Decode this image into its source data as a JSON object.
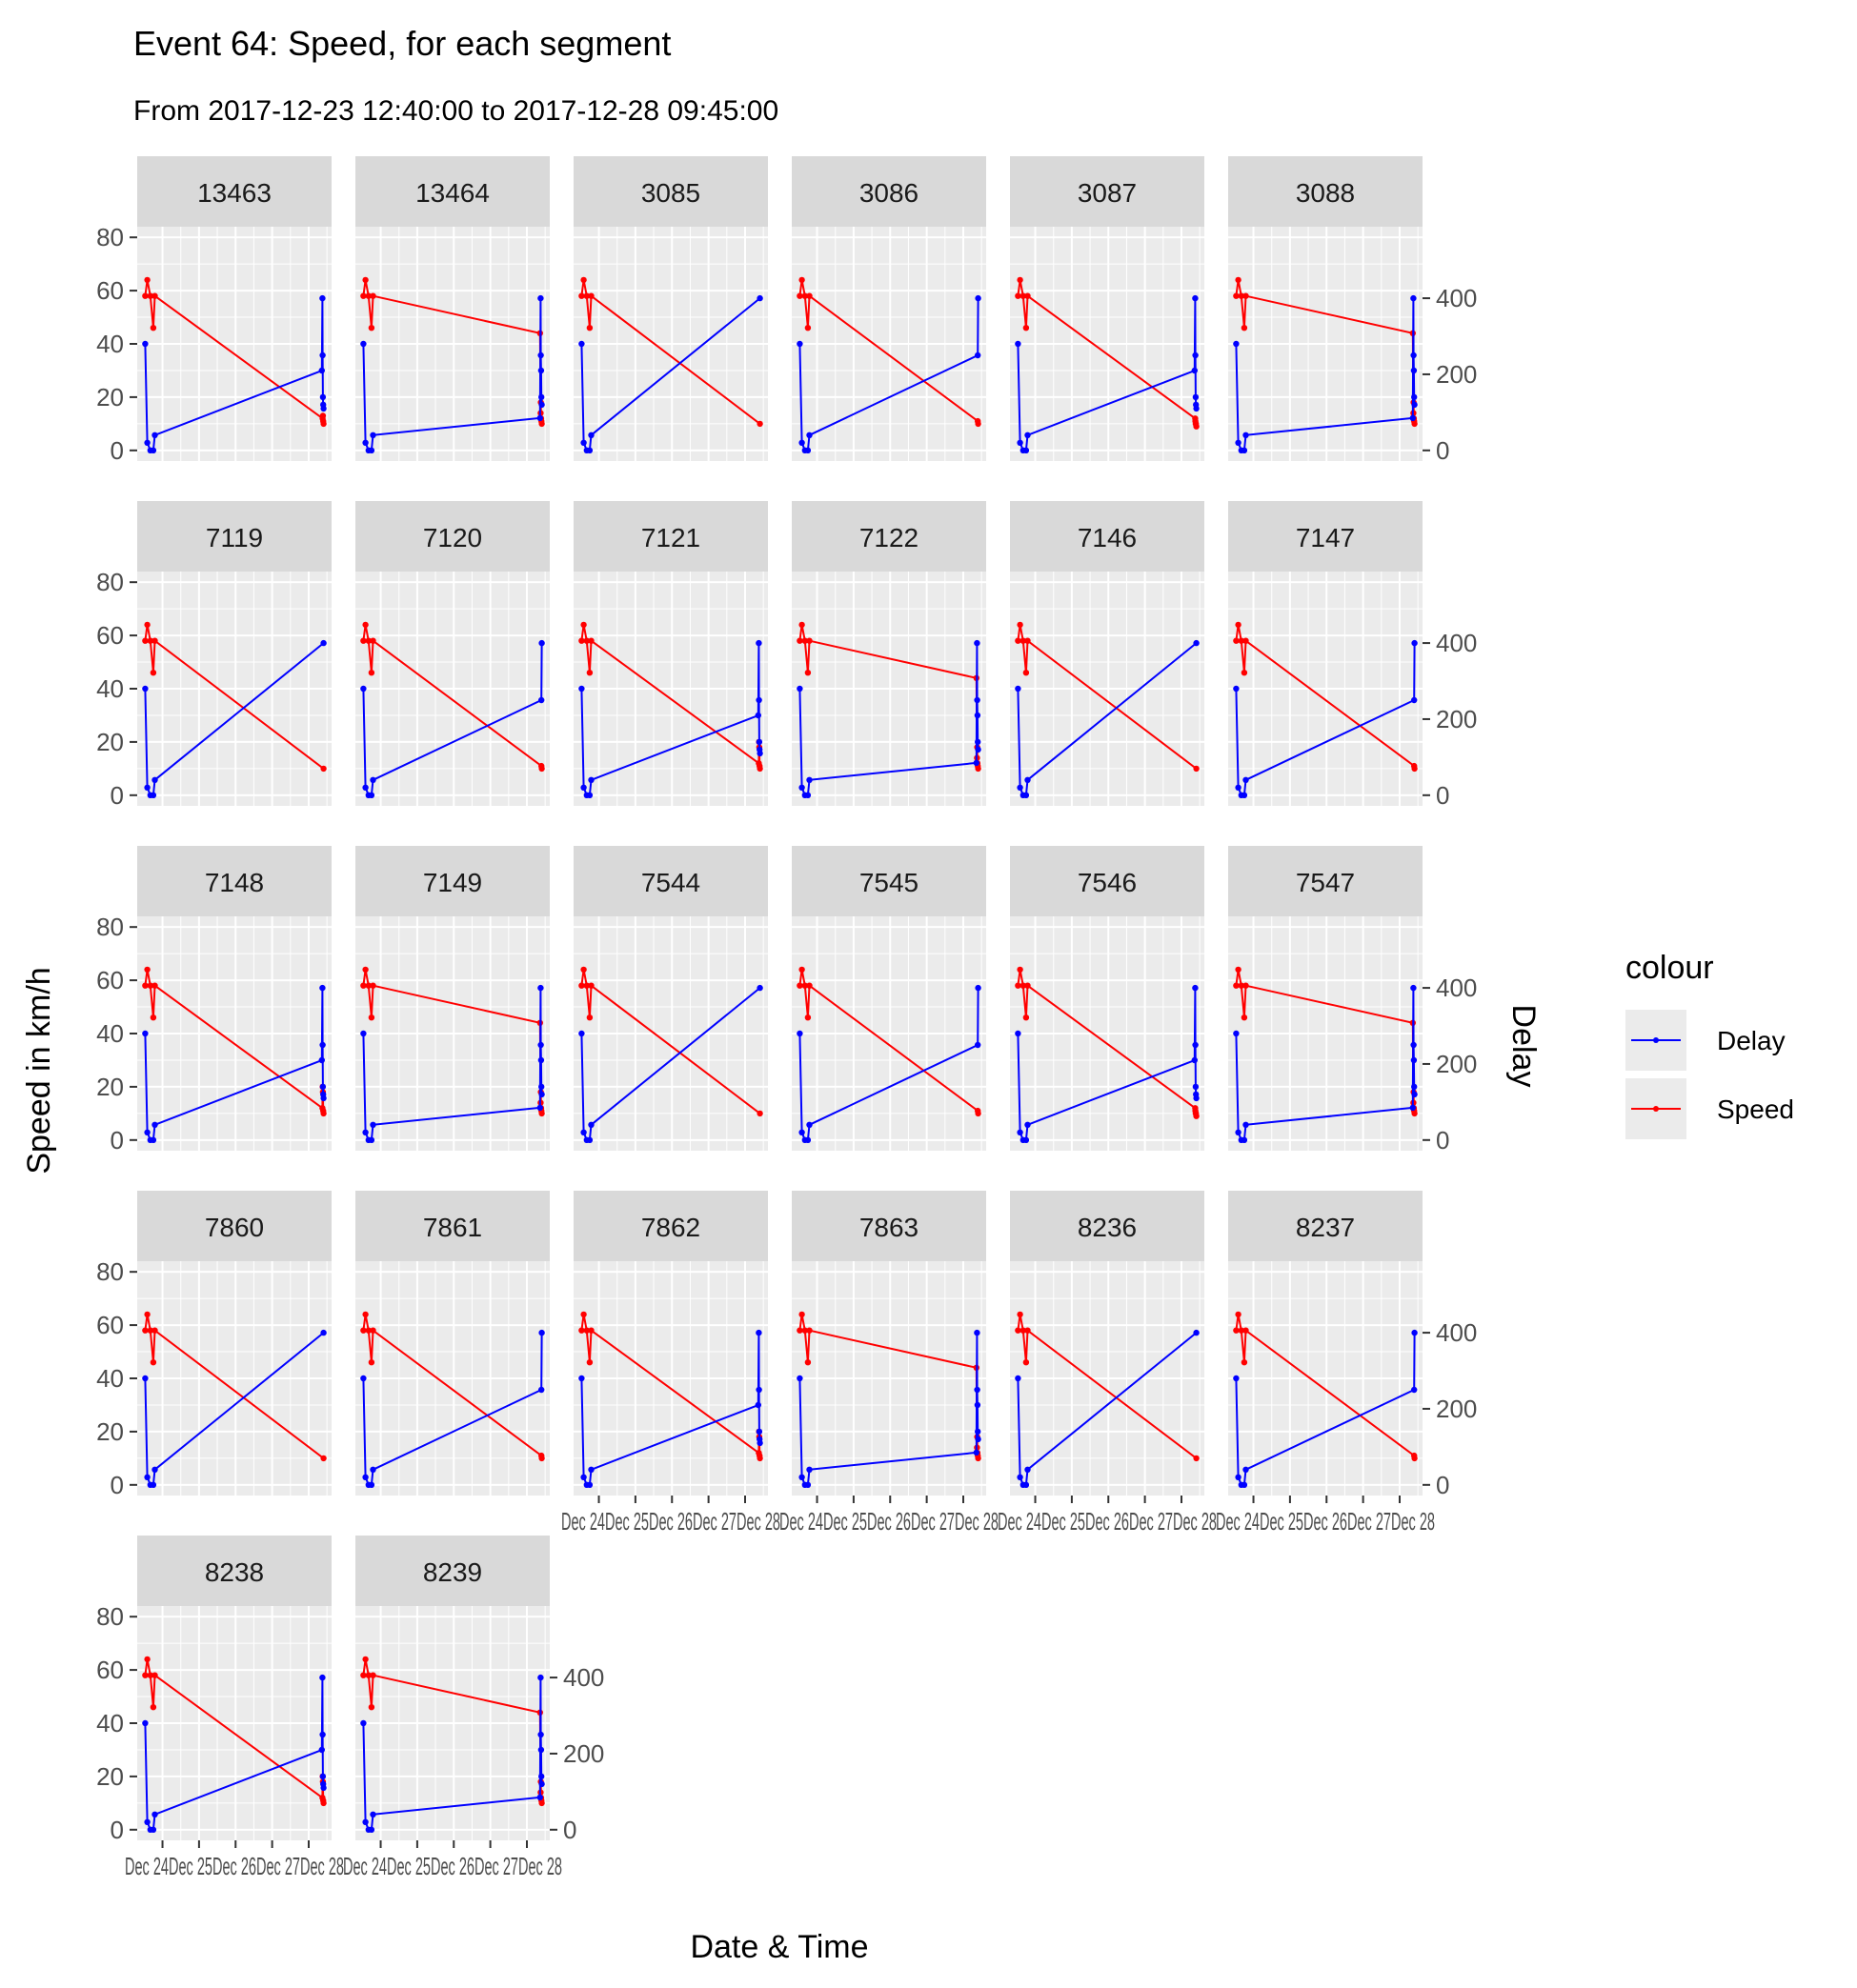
{
  "title": "Event 64: Speed, for each segment",
  "subtitle": "From 2017-12-23 12:40:00 to 2017-12-28 09:45:00",
  "colors": {
    "delay": "#0000ff",
    "speed": "#ff0000",
    "panel_bg": "#ebebeb",
    "strip_bg": "#d9d9d9",
    "grid": "#ffffff"
  },
  "legend": {
    "title": "colour",
    "items": [
      {
        "label": "Delay",
        "color": "#0000ff"
      },
      {
        "label": "Speed",
        "color": "#ff0000"
      }
    ]
  },
  "chart_data": {
    "type": "line",
    "xlabel": "Date & Time",
    "ylabel": "Speed in km/h",
    "y2label": "Delay",
    "ylim": [
      0,
      80
    ],
    "y2lim": [
      0,
      560
    ],
    "yticks": [
      "0",
      "20",
      "40",
      "60",
      "80"
    ],
    "y2ticks": [
      "0",
      "200",
      "400"
    ],
    "xlim": [
      "2017-12-23 12:40",
      "2017-12-28 09:45"
    ],
    "x_tick_labels_overlapping": "Dec 24Dec 25Dec 26Dec 27Dec 28",
    "legend_position": "right",
    "grid": true,
    "x_times": [
      "12-23 12:40",
      "12-23 14:00",
      "12-23 16:00",
      "12-23 18:00",
      "12-23 19:00",
      "12-28 08:40",
      "12-28 09:00",
      "12-28 09:10",
      "12-28 09:20",
      "12-28 09:30",
      "12-28 09:45"
    ],
    "panels": [
      {
        "segment": "13463",
        "speed": [
          58,
          64,
          58,
          46,
          58,
          null,
          null,
          12,
          13,
          11,
          10
        ],
        "delay": [
          280,
          20,
          0,
          0,
          40,
          210,
          400,
          250,
          140,
          120,
          110
        ]
      },
      {
        "segment": "13464",
        "speed": [
          58,
          64,
          58,
          46,
          58,
          44,
          14,
          18,
          12,
          11,
          10
        ],
        "delay": [
          280,
          20,
          0,
          0,
          40,
          85,
          400,
          250,
          210,
          140,
          120
        ]
      },
      {
        "segment": "3085",
        "speed": [
          58,
          64,
          58,
          46,
          58,
          null,
          null,
          null,
          null,
          null,
          10
        ],
        "delay": [
          280,
          20,
          0,
          0,
          40,
          null,
          null,
          null,
          null,
          null,
          400
        ]
      },
      {
        "segment": "3086",
        "speed": [
          58,
          64,
          58,
          46,
          58,
          null,
          null,
          null,
          null,
          11,
          10
        ],
        "delay": [
          280,
          20,
          0,
          0,
          40,
          null,
          null,
          null,
          null,
          250,
          400
        ]
      },
      {
        "segment": "3087",
        "speed": [
          58,
          64,
          58,
          46,
          58,
          null,
          12,
          11,
          10,
          10,
          9
        ],
        "delay": [
          280,
          20,
          0,
          0,
          40,
          210,
          400,
          250,
          140,
          120,
          110
        ]
      },
      {
        "segment": "3088",
        "speed": [
          58,
          64,
          58,
          46,
          58,
          44,
          14,
          18,
          12,
          11,
          10
        ],
        "delay": [
          280,
          20,
          0,
          0,
          40,
          85,
          400,
          250,
          210,
          140,
          120
        ]
      },
      {
        "segment": "7119",
        "speed": [
          58,
          64,
          58,
          46,
          58,
          null,
          null,
          null,
          null,
          null,
          10
        ],
        "delay": [
          280,
          20,
          0,
          0,
          40,
          null,
          null,
          null,
          null,
          null,
          400
        ]
      },
      {
        "segment": "7120",
        "speed": [
          58,
          64,
          58,
          46,
          58,
          null,
          null,
          null,
          null,
          11,
          10
        ],
        "delay": [
          280,
          20,
          0,
          0,
          40,
          null,
          null,
          null,
          null,
          250,
          400
        ]
      },
      {
        "segment": "7121",
        "speed": [
          58,
          64,
          58,
          46,
          58,
          null,
          12,
          20,
          18,
          11,
          10
        ],
        "delay": [
          280,
          20,
          0,
          0,
          40,
          210,
          400,
          250,
          140,
          120,
          110
        ]
      },
      {
        "segment": "7122",
        "speed": [
          58,
          64,
          58,
          46,
          58,
          44,
          14,
          18,
          12,
          11,
          10
        ],
        "delay": [
          280,
          20,
          0,
          0,
          40,
          85,
          400,
          250,
          210,
          140,
          120
        ]
      },
      {
        "segment": "7146",
        "speed": [
          58,
          64,
          58,
          46,
          58,
          null,
          null,
          null,
          null,
          null,
          10
        ],
        "delay": [
          280,
          20,
          0,
          0,
          40,
          null,
          null,
          null,
          null,
          null,
          400
        ]
      },
      {
        "segment": "7147",
        "speed": [
          58,
          64,
          58,
          46,
          58,
          null,
          null,
          null,
          null,
          11,
          10
        ],
        "delay": [
          280,
          20,
          0,
          0,
          40,
          null,
          null,
          null,
          null,
          250,
          400
        ]
      },
      {
        "segment": "7148",
        "speed": [
          58,
          64,
          58,
          46,
          58,
          null,
          12,
          20,
          18,
          11,
          10
        ],
        "delay": [
          280,
          20,
          0,
          0,
          40,
          210,
          400,
          250,
          140,
          120,
          110
        ]
      },
      {
        "segment": "7149",
        "speed": [
          58,
          64,
          58,
          46,
          58,
          44,
          14,
          18,
          12,
          11,
          10
        ],
        "delay": [
          280,
          20,
          0,
          0,
          40,
          85,
          400,
          250,
          210,
          140,
          120
        ]
      },
      {
        "segment": "7544",
        "speed": [
          58,
          64,
          58,
          46,
          58,
          null,
          null,
          null,
          null,
          null,
          10
        ],
        "delay": [
          280,
          20,
          0,
          0,
          40,
          null,
          null,
          null,
          null,
          null,
          400
        ]
      },
      {
        "segment": "7545",
        "speed": [
          58,
          64,
          58,
          46,
          58,
          null,
          null,
          null,
          null,
          11,
          10
        ],
        "delay": [
          280,
          20,
          0,
          0,
          40,
          null,
          null,
          null,
          null,
          250,
          400
        ]
      },
      {
        "segment": "7546",
        "speed": [
          58,
          64,
          58,
          46,
          58,
          null,
          12,
          11,
          10,
          10,
          9
        ],
        "delay": [
          280,
          20,
          0,
          0,
          40,
          210,
          400,
          250,
          140,
          120,
          110
        ]
      },
      {
        "segment": "7547",
        "speed": [
          58,
          64,
          58,
          46,
          58,
          44,
          14,
          18,
          12,
          11,
          10
        ],
        "delay": [
          280,
          20,
          0,
          0,
          40,
          85,
          400,
          250,
          210,
          140,
          120
        ]
      },
      {
        "segment": "7860",
        "speed": [
          58,
          64,
          58,
          46,
          58,
          null,
          null,
          null,
          null,
          null,
          10
        ],
        "delay": [
          280,
          20,
          0,
          0,
          40,
          null,
          null,
          null,
          null,
          null,
          400
        ]
      },
      {
        "segment": "7861",
        "speed": [
          58,
          64,
          58,
          46,
          58,
          null,
          null,
          null,
          null,
          11,
          10
        ],
        "delay": [
          280,
          20,
          0,
          0,
          40,
          null,
          null,
          null,
          null,
          250,
          400
        ]
      },
      {
        "segment": "7862",
        "speed": [
          58,
          64,
          58,
          46,
          58,
          null,
          12,
          20,
          18,
          11,
          10
        ],
        "delay": [
          280,
          20,
          0,
          0,
          40,
          210,
          400,
          250,
          140,
          120,
          110
        ]
      },
      {
        "segment": "7863",
        "speed": [
          58,
          64,
          58,
          46,
          58,
          44,
          14,
          18,
          12,
          11,
          10
        ],
        "delay": [
          280,
          20,
          0,
          0,
          40,
          85,
          400,
          250,
          210,
          140,
          120
        ]
      },
      {
        "segment": "8236",
        "speed": [
          58,
          64,
          58,
          46,
          58,
          null,
          null,
          null,
          null,
          null,
          10
        ],
        "delay": [
          280,
          20,
          0,
          0,
          40,
          null,
          null,
          null,
          null,
          null,
          400
        ]
      },
      {
        "segment": "8237",
        "speed": [
          58,
          64,
          58,
          46,
          58,
          null,
          null,
          null,
          null,
          11,
          10
        ],
        "delay": [
          280,
          20,
          0,
          0,
          40,
          null,
          null,
          null,
          null,
          250,
          400
        ]
      },
      {
        "segment": "8238",
        "speed": [
          58,
          64,
          58,
          46,
          58,
          null,
          12,
          20,
          18,
          11,
          10
        ],
        "delay": [
          280,
          20,
          0,
          0,
          40,
          210,
          400,
          250,
          140,
          120,
          110
        ]
      },
      {
        "segment": "8239",
        "speed": [
          58,
          64,
          58,
          46,
          58,
          44,
          14,
          18,
          12,
          11,
          10
        ],
        "delay": [
          280,
          20,
          0,
          0,
          40,
          85,
          400,
          250,
          210,
          140,
          120
        ]
      }
    ]
  }
}
